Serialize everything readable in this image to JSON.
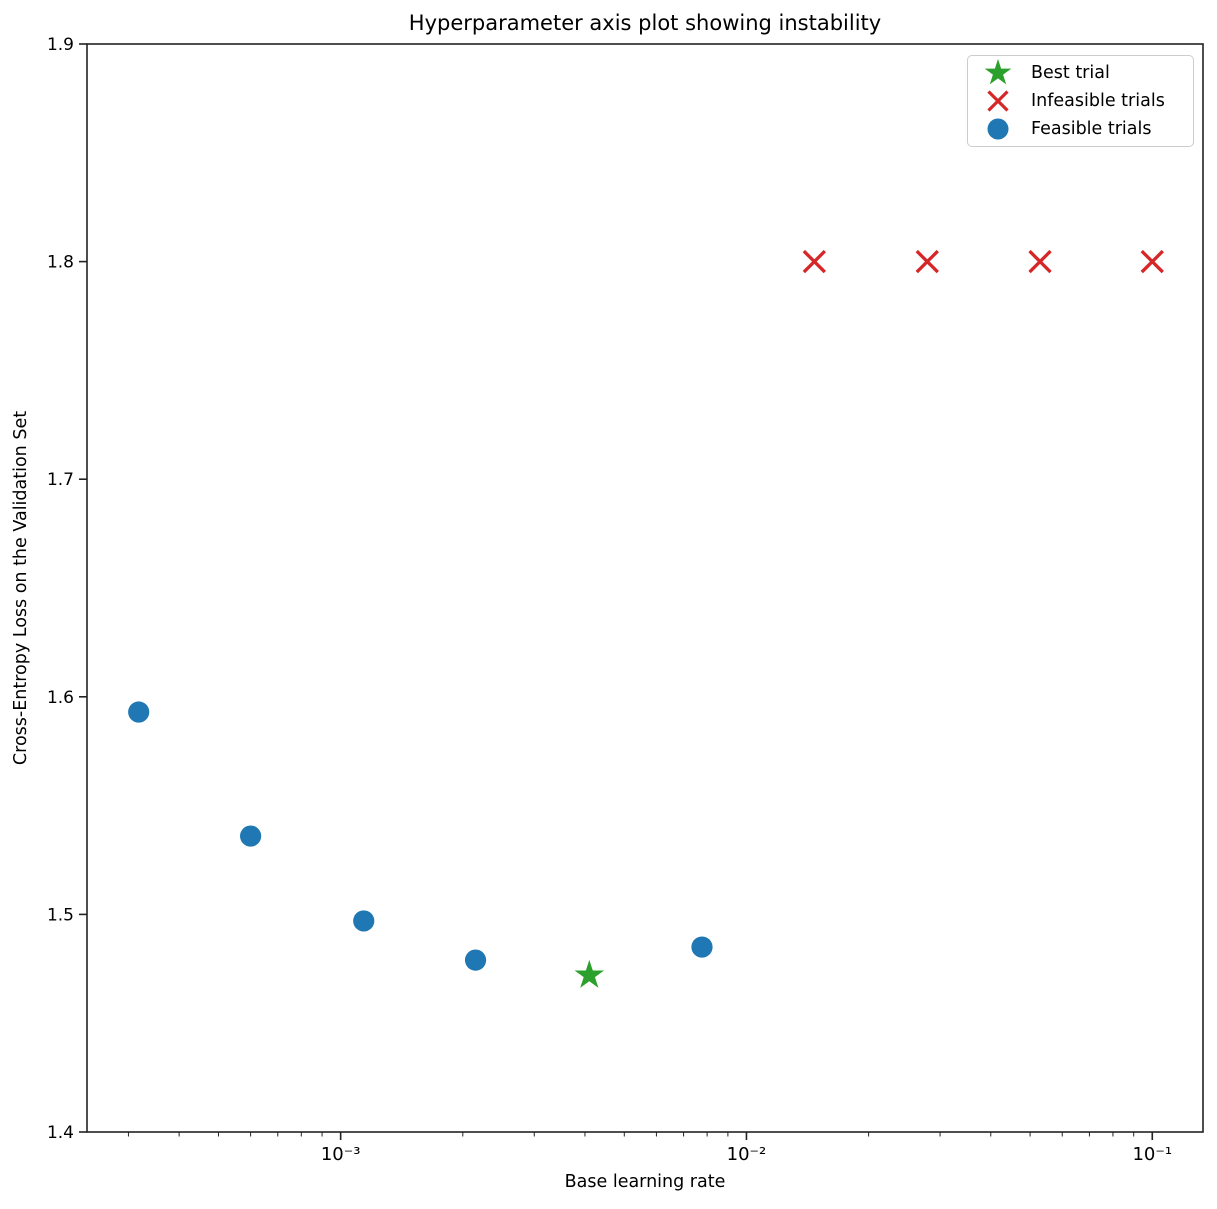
{
  "chart_data": {
    "type": "scatter",
    "title": "Hyperparameter axis plot showing instability",
    "xlabel": "Base learning rate",
    "ylabel": "Cross-Entropy Loss on the Validation Set",
    "x_scale": "log",
    "x_domain_log10": [
      -3.625,
      -0.875
    ],
    "ylim": [
      1.4,
      1.9
    ],
    "y_ticks": [
      1.4,
      1.5,
      1.6,
      1.7,
      1.8,
      1.9
    ],
    "x_major_ticks": [
      {
        "value": 0.001,
        "label": "10⁻³"
      },
      {
        "value": 0.01,
        "label": "10⁻²"
      },
      {
        "value": 0.1,
        "label": "10⁻¹"
      }
    ],
    "grid": false,
    "legend_position": "upper right",
    "axis_color": "#222222",
    "series": [
      {
        "name": "Best trial",
        "marker": "star",
        "color": "#2ca02c",
        "points": [
          {
            "x": 0.0041,
            "y": 1.472
          }
        ]
      },
      {
        "name": "Infeasible trials",
        "marker": "x",
        "color": "#d62728",
        "points": [
          {
            "x": 0.0147,
            "y": 1.8
          },
          {
            "x": 0.0279,
            "y": 1.8
          },
          {
            "x": 0.0529,
            "y": 1.8
          },
          {
            "x": 0.1,
            "y": 1.8
          }
        ]
      },
      {
        "name": "Feasible trials",
        "marker": "circle",
        "color": "#1f77b4",
        "points": [
          {
            "x": 0.000318,
            "y": 1.593
          },
          {
            "x": 0.0006,
            "y": 1.536
          },
          {
            "x": 0.00114,
            "y": 1.497
          },
          {
            "x": 0.00215,
            "y": 1.479
          },
          {
            "x": 0.00777,
            "y": 1.485
          }
        ]
      }
    ]
  }
}
